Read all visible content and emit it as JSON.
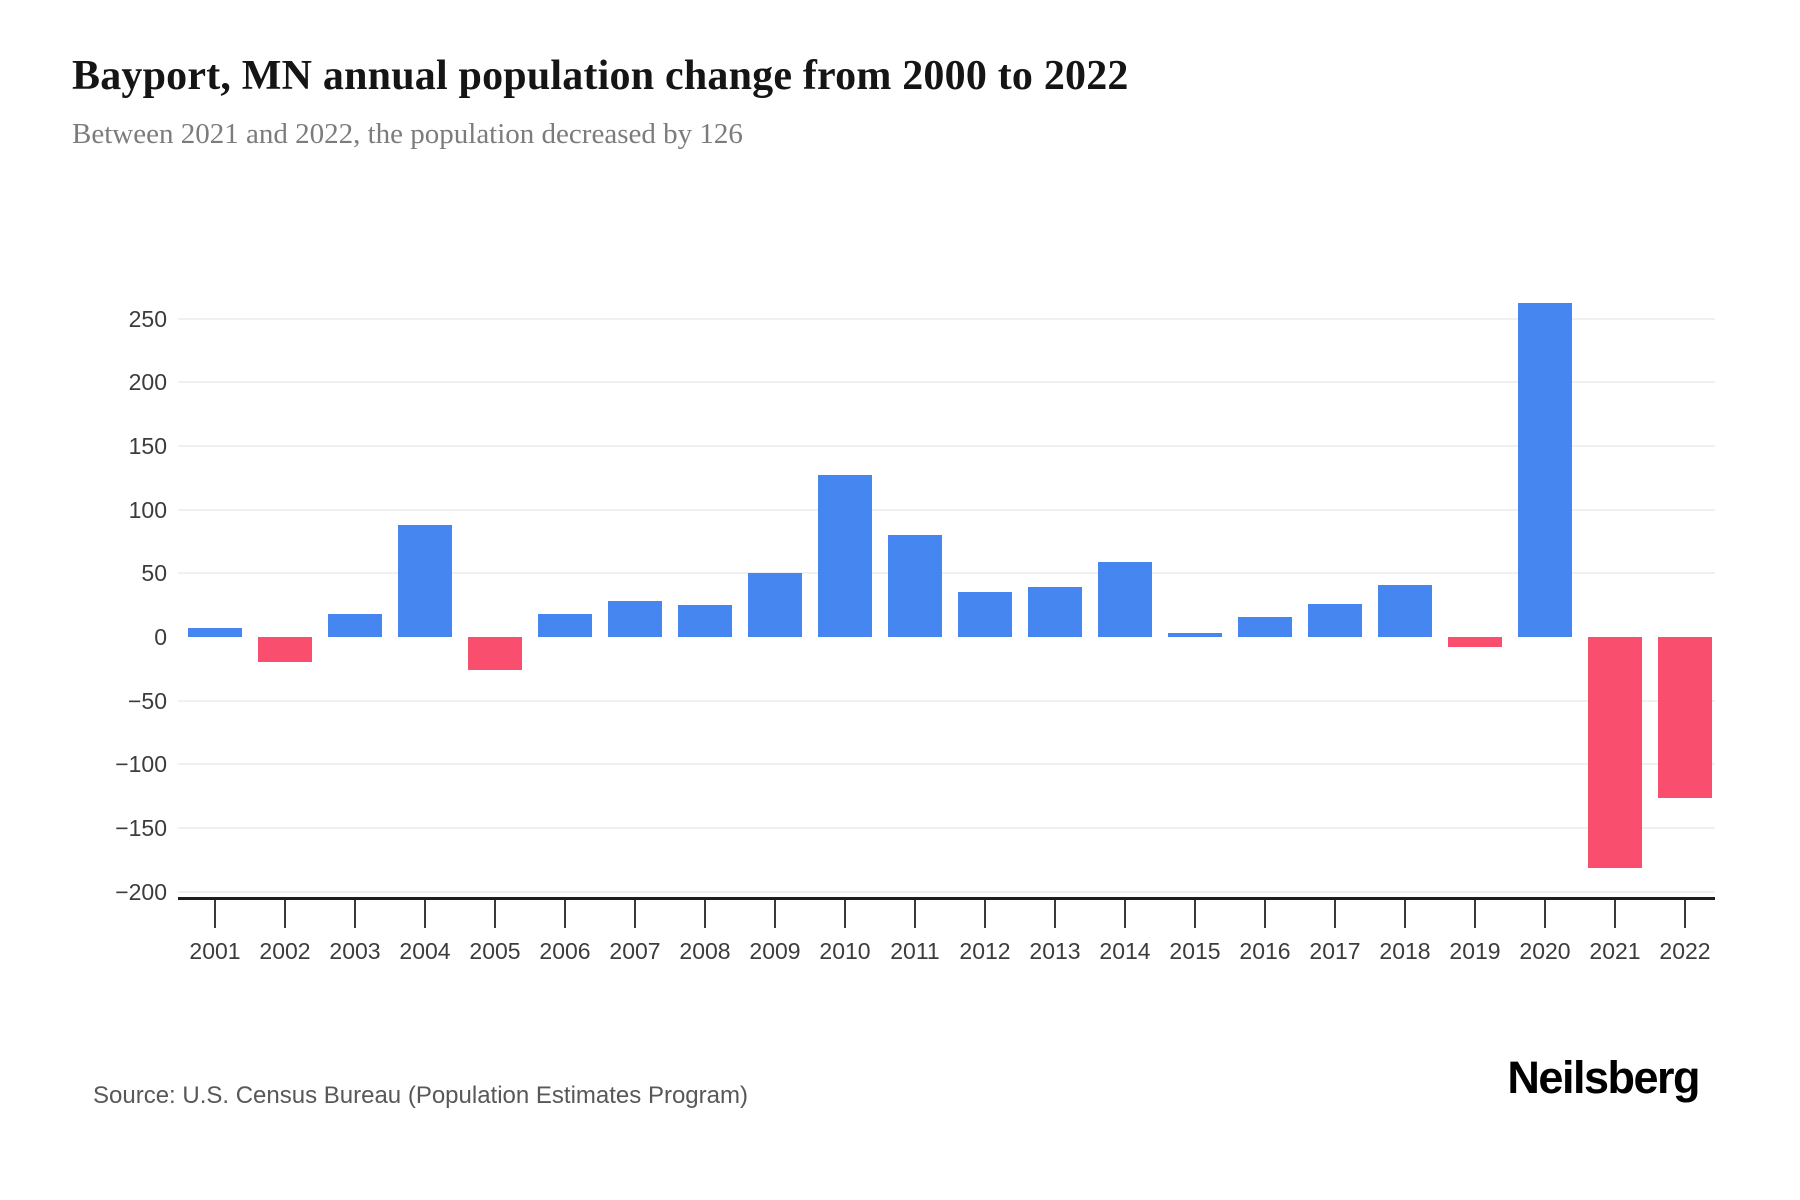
{
  "header": {
    "title": "Bayport, MN annual population change from 2000 to 2022",
    "subtitle": "Between 2021 and 2022, the population decreased by 126"
  },
  "footer": {
    "source": "Source: U.S. Census Bureau (Population Estimates Program)",
    "brand": "Neilsberg"
  },
  "chart_data": {
    "type": "bar",
    "title": "Bayport, MN annual population change from 2000 to 2022",
    "categories": [
      "2001",
      "2002",
      "2003",
      "2004",
      "2005",
      "2006",
      "2007",
      "2008",
      "2009",
      "2010",
      "2011",
      "2012",
      "2013",
      "2014",
      "2015",
      "2016",
      "2017",
      "2018",
      "2019",
      "2020",
      "2021",
      "2022"
    ],
    "values": [
      7,
      -20,
      18,
      88,
      -26,
      18,
      28,
      25,
      50,
      127,
      80,
      35,
      39,
      59,
      3,
      16,
      26,
      41,
      -8,
      262,
      -181,
      -126
    ],
    "xlabel": "",
    "ylabel": "",
    "ylim": [
      -200,
      250
    ],
    "yticks": [
      250,
      200,
      150,
      100,
      50,
      0,
      -50,
      -100,
      -150,
      -200
    ],
    "grid": "horizontal-light-gray-no-line-at-zero",
    "legend": "none",
    "colors": {
      "positive_bar": "#4586F1",
      "negative_bar": "#F94E6D",
      "gridline": "#F0F0F0",
      "axis_line": "#1F1F1F",
      "tick_label": "#3C3C3C"
    }
  }
}
